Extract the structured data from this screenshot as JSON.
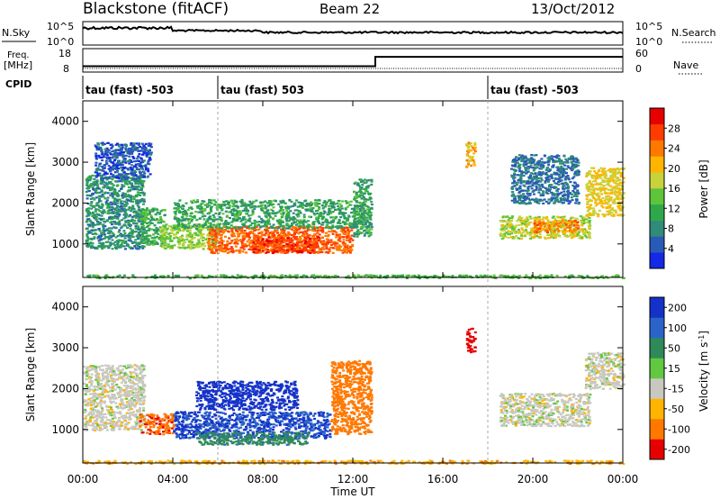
{
  "header": {
    "title": "Blackstone (fitACF)",
    "beam": "Beam 22",
    "date": "13/Oct/2012"
  },
  "noise_panel": {
    "left_label": "N.Sky",
    "right_label": "N.Search",
    "left_ticks": [
      "10^5",
      "10^0"
    ],
    "right_ticks": [
      "10^5",
      "10^0"
    ]
  },
  "freq_panel": {
    "left_label": "Freq.",
    "left_unit": "[MHz]",
    "right_label": "Nave",
    "left_ticks": [
      "18",
      "8"
    ],
    "right_ticks": [
      "60",
      "0"
    ]
  },
  "cpid": {
    "label": "CPID",
    "segments": [
      {
        "label": "tau (fast) -503",
        "start_hour": 0
      },
      {
        "label": "tau (fast) 503",
        "start_hour": 6
      },
      {
        "label": "tau (fast) -503",
        "start_hour": 18
      }
    ]
  },
  "x_axis": {
    "label": "Time UT",
    "ticks": [
      "00:00",
      "04:00",
      "08:00",
      "12:00",
      "16:00",
      "20:00",
      "00:00"
    ],
    "range_hours": [
      0,
      24
    ]
  },
  "y_axis": {
    "label": "Slant Range [km]",
    "ticks": [
      "1000",
      "2000",
      "3000",
      "4000"
    ],
    "range_km": [
      180,
      4500
    ]
  },
  "power_scale": {
    "label": "Power [dB]",
    "ticks": [
      "4",
      "8",
      "12",
      "16",
      "20",
      "24",
      "28"
    ],
    "colors": [
      "#1428e6",
      "#2a5ab8",
      "#2f8c78",
      "#2fa84a",
      "#5ec43a",
      "#c8d23a",
      "#ffb400",
      "#ff7800",
      "#ff3c00",
      "#e60000"
    ]
  },
  "velocity_scale": {
    "label": "Velocity [m s",
    "label_sup": "-1",
    "label_end": "]",
    "ticks": [
      "200",
      "100",
      "50",
      "15",
      "-15",
      "-50",
      "-100",
      "-200"
    ],
    "colors": [
      "#1432c8",
      "#2a64c8",
      "#2f8a5a",
      "#62c840",
      "#c8c8c0",
      "#ffb400",
      "#ff7800",
      "#e60000"
    ]
  },
  "chart_data": {
    "type": "heatmap",
    "title": "Blackstone (fitACF)",
    "xlabel": "Time UT",
    "ylabel": "Slant Range [km]",
    "xlim": [
      0,
      24
    ],
    "ylim": [
      180,
      4500
    ],
    "freq_steps": [
      {
        "start_hour": 0,
        "end_hour": 13,
        "mhz": 10.5
      },
      {
        "start_hour": 13,
        "end_hour": 24,
        "mhz": 14.5
      }
    ],
    "power_regions": [
      {
        "t0": 0.1,
        "t1": 2.7,
        "r0": 900,
        "r1": 2700,
        "db": 10
      },
      {
        "t0": 2.5,
        "t1": 3.6,
        "r0": 1000,
        "r1": 1900,
        "db": 13
      },
      {
        "t0": 3.4,
        "t1": 6.0,
        "r0": 900,
        "r1": 1500,
        "db": 17
      },
      {
        "t0": 5.5,
        "t1": 12.0,
        "r0": 800,
        "r1": 1450,
        "db": 26
      },
      {
        "t0": 7.5,
        "t1": 10.5,
        "r0": 800,
        "r1": 1200,
        "db": 28
      },
      {
        "t0": 4.0,
        "t1": 12.5,
        "r0": 1400,
        "r1": 2100,
        "db": 12
      },
      {
        "t0": 12.0,
        "t1": 12.8,
        "r0": 1200,
        "r1": 2600,
        "db": 12
      },
      {
        "t0": 0.5,
        "t1": 3.0,
        "r0": 2600,
        "r1": 3500,
        "db": 6
      },
      {
        "t0": 17.0,
        "t1": 17.4,
        "r0": 2900,
        "r1": 3500,
        "db": 22
      },
      {
        "t0": 18.5,
        "t1": 22.5,
        "r0": 1150,
        "r1": 1700,
        "db": 18
      },
      {
        "t0": 20.0,
        "t1": 22.0,
        "r0": 1300,
        "r1": 1600,
        "db": 24
      },
      {
        "t0": 22.3,
        "t1": 24.0,
        "r0": 1700,
        "r1": 2900,
        "db": 20
      },
      {
        "t0": 19.0,
        "t1": 22.0,
        "r0": 2000,
        "r1": 3200,
        "db": 8
      },
      {
        "t0": 0.0,
        "t1": 24.0,
        "r0": 180,
        "r1": 260,
        "db": 14
      }
    ],
    "velocity_regions": [
      {
        "t0": 0.0,
        "t1": 2.7,
        "r0": 1000,
        "r1": 2600,
        "v": 0
      },
      {
        "t0": 2.5,
        "t1": 4.0,
        "r0": 900,
        "r1": 1400,
        "v": -90
      },
      {
        "t0": 4.0,
        "t1": 11.0,
        "r0": 800,
        "r1": 1450,
        "v": 150
      },
      {
        "t0": 5.0,
        "t1": 10.0,
        "r0": 650,
        "r1": 950,
        "v": 60
      },
      {
        "t0": 5.0,
        "t1": 9.5,
        "r0": 1500,
        "r1": 2200,
        "v": 180
      },
      {
        "t0": 11.0,
        "t1": 12.8,
        "r0": 900,
        "r1": 2700,
        "v": -80
      },
      {
        "t0": 17.0,
        "t1": 17.4,
        "r0": 2900,
        "r1": 3500,
        "v": -220
      },
      {
        "t0": 18.5,
        "t1": 22.5,
        "r0": 1100,
        "r1": 1900,
        "v": 0
      },
      {
        "t0": 22.3,
        "t1": 24.0,
        "r0": 2000,
        "r1": 2900,
        "v": 0
      },
      {
        "t0": 0.0,
        "t1": 24.0,
        "r0": 180,
        "r1": 260,
        "v": -40
      }
    ]
  }
}
